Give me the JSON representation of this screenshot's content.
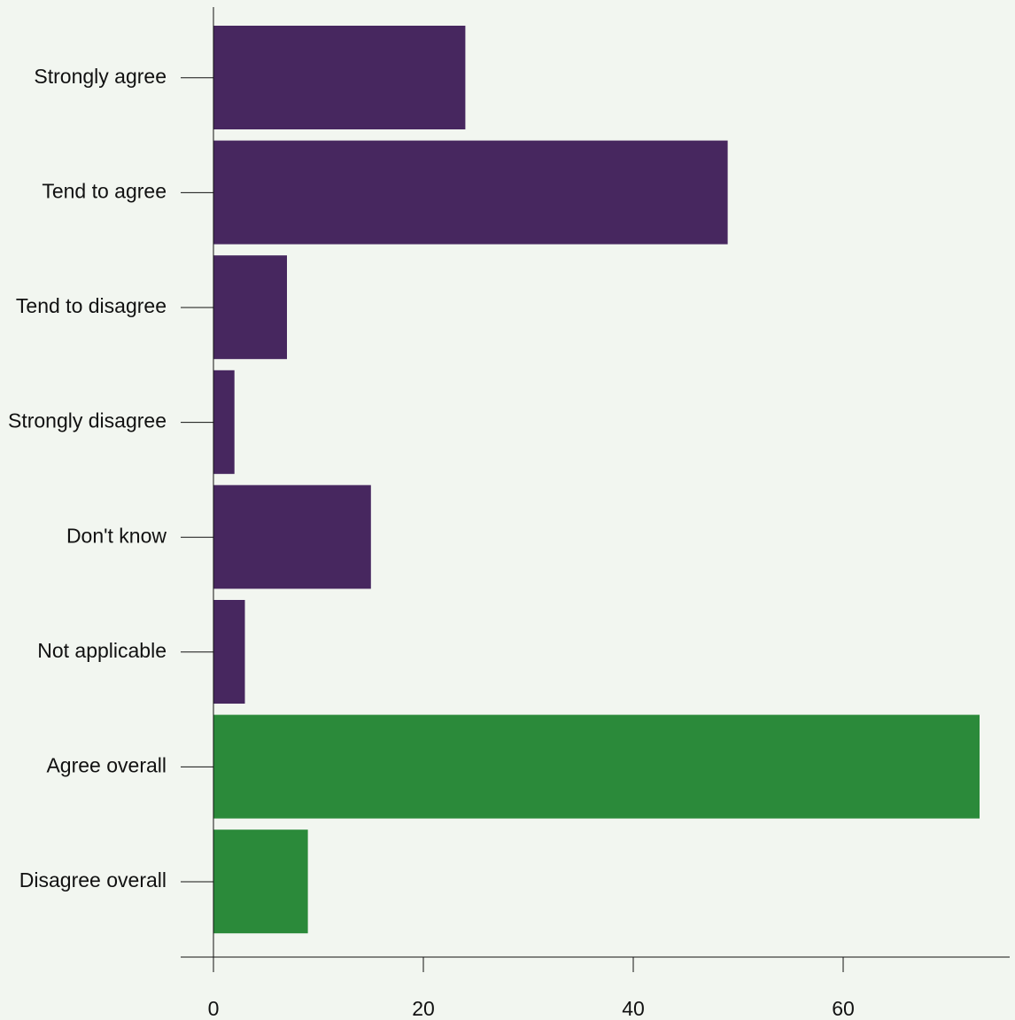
{
  "chart_data": {
    "type": "bar",
    "orientation": "horizontal",
    "title": "",
    "xlabel": "",
    "ylabel": "",
    "categories": [
      "Strongly agree",
      "Tend to agree",
      "Tend to disagree",
      "Strongly disagree",
      "Don't know",
      "Not applicable",
      "Agree overall",
      "Disagree overall"
    ],
    "values": [
      24,
      49,
      7,
      2,
      15,
      3,
      73,
      9
    ],
    "bar_colors": [
      "#47275f",
      "#47275f",
      "#47275f",
      "#47275f",
      "#47275f",
      "#47275f",
      "#2b8a3a",
      "#2b8a3a"
    ],
    "xlim": [
      0,
      76
    ],
    "x_ticks": [
      0,
      20,
      40,
      60
    ],
    "x_tick_labels": [
      "0",
      "20",
      "40",
      "60"
    ],
    "grid": false,
    "background_color": "#f2f6f0"
  }
}
